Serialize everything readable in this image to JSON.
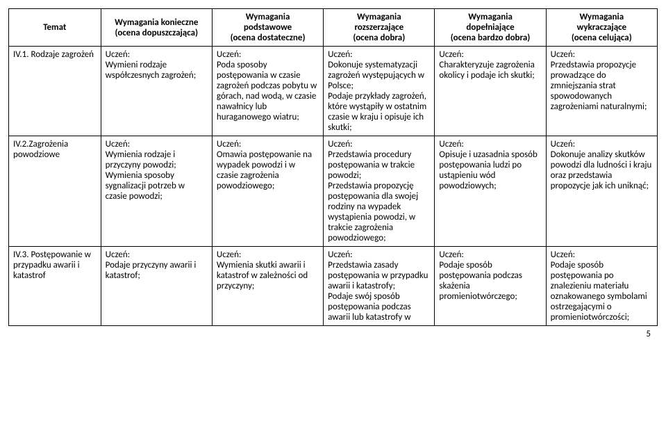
{
  "headers": {
    "temat": "Temat",
    "konieczne_l1": "Wymagania konieczne",
    "konieczne_l2": "(ocena dopuszczająca)",
    "podstawowe_l1": "Wymagania",
    "podstawowe_l2": "podstawowe",
    "podstawowe_l3": "(ocena dostateczne)",
    "rozszerzajace_l1": "Wymagania",
    "rozszerzajace_l2": "rozszerzające",
    "rozszerzajace_l3": "(ocena dobra)",
    "dopelniajace_l1": "Wymagania",
    "dopelniajace_l2": "dopełniające",
    "dopelniajace_l3": "(ocena bardzo dobra)",
    "wykraczajace_l1": "Wymagania",
    "wykraczajace_l2": "wykraczające",
    "wykraczajace_l3": "(ocena celująca)"
  },
  "rows": [
    {
      "temat": "IV.1. Rodzaje zagrożeń",
      "konieczne": "Uczeń:\nWymieni rodzaje współczesnych zagrożeń;",
      "podstawowe": "Uczeń:\nPoda sposoby postępowania w czasie zagrożeń podczas pobytu w górach,  nad wodą, w czasie nawałnicy lub huraganowego wiatru;",
      "rozszerzajace": "Uczeń:\nDokonuje systematyzacji zagrożeń występujących w Polsce;\nPodaje przykłady zagrożeń, które wystąpiły w ostatnim czasie w kraju i opisuje ich skutki;",
      "dopelniajace": "Uczeń:\nCharakteryzuje zagrożenia okolicy i podaje ich skutki;",
      "wykraczajace": "Uczeń:\nPrzedstawia propozycje prowadzące do zmniejszania strat spowodowanych zagrożeniami naturalnymi;"
    },
    {
      "temat": "IV.2.Zagrożenia powodziowe",
      "konieczne": "Uczeń:\nWymienia rodzaje i przyczyny powodzi;\nWymienia sposoby sygnalizacji potrzeb w czasie powodzi;",
      "podstawowe": "Uczeń:\nOmawia postępowanie na wypadek powodzi i w czasie zagrożenia powodziowego;",
      "rozszerzajace": "Uczeń:\nPrzedstawia procedury postępowania w trakcie powodzi;\nPrzedstawia propozycję postępowania dla swojej rodziny na wypadek wystąpienia powodzi, w trakcie zagrożenia powodziowego;",
      "dopelniajace": "Uczeń:\nOpisuje i uzasadnia sposób postępowania ludzi po ustąpieniu wód powodziowych;",
      "wykraczajace": "Uczeń:\nDokonuje analizy skutków powodzi dla ludności i kraju oraz przedstawia propozycje jak ich uniknąć;"
    },
    {
      "temat": "IV.3. Postępowanie w przypadku awarii i katastrof",
      "konieczne": "Uczeń:\nPodaje przyczyny awarii i katastrof;",
      "podstawowe": "Uczeń:\nWymienia skutki awarii i katastrof w zależności od przyczyny;",
      "rozszerzajace": "Uczeń:\nPrzedstawia zasady postępowania w przypadku awarii i katastrofy;\nPodaje swój sposób postępowania podczas awarii lub katastrofy w",
      "dopelniajace": "Uczeń:\nPodaje sposób postępowania podczas skażenia promieniotwórczego;",
      "wykraczajace": "Uczeń:\nPodaje sposób postępowania po znalezieniu materiału oznakowanego symbolami ostrzegającymi o promieniotwórczości;"
    }
  ],
  "pagenum": "5"
}
